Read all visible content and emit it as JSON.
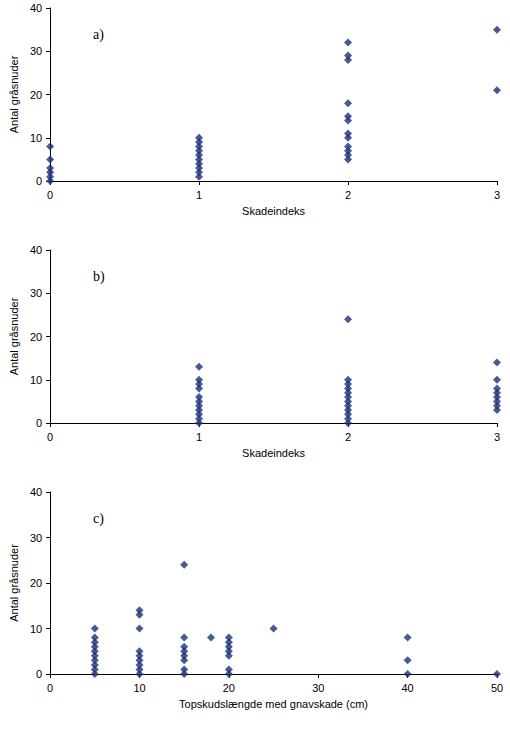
{
  "chart_data": [
    {
      "type": "scatter",
      "title": "a)",
      "x_label": "Skadeindeks",
      "y_label": "Antal gråsnuder",
      "x": [
        0,
        0,
        0,
        0,
        0,
        0,
        1,
        1,
        1,
        1,
        1,
        1,
        1,
        1,
        1,
        1,
        2,
        2,
        2,
        2,
        2,
        2,
        2,
        2,
        2,
        2,
        2,
        2,
        3,
        3
      ],
      "values": [
        8,
        5,
        3,
        2,
        1,
        0,
        10,
        9,
        8,
        7,
        6,
        5,
        4,
        3,
        2,
        1,
        32,
        29,
        28,
        18,
        15,
        14,
        11,
        10,
        8,
        7,
        6,
        5,
        35,
        21
      ],
      "color": "#1a2f78",
      "marker": "diamond",
      "xlim": [
        0,
        3
      ],
      "xticks": [
        0,
        1,
        2,
        3
      ],
      "ylim": [
        0,
        40
      ],
      "yticks": [
        0,
        10,
        20,
        30,
        40
      ],
      "grid": false
    },
    {
      "type": "scatter",
      "title": "b)",
      "x_label": "Skadeindeks",
      "y_label": "Antal gråsnuder",
      "x": [
        1,
        1,
        1,
        1,
        1,
        1,
        1,
        1,
        1,
        1,
        1,
        2,
        2,
        2,
        2,
        2,
        2,
        2,
        2,
        2,
        2,
        2,
        2,
        3,
        3,
        3,
        3,
        3,
        3,
        3,
        3
      ],
      "values": [
        13,
        10,
        9,
        8,
        6,
        5,
        4,
        3,
        2,
        1,
        0,
        24,
        10,
        9,
        8,
        7,
        6,
        5,
        4,
        3,
        2,
        1,
        0,
        14,
        10,
        8,
        7,
        6,
        5,
        4,
        3
      ],
      "color": "#1a2f78",
      "marker": "diamond",
      "xlim": [
        0,
        3
      ],
      "xticks": [
        0,
        1,
        2,
        3
      ],
      "ylim": [
        0,
        40
      ],
      "yticks": [
        0,
        10,
        20,
        30,
        40
      ],
      "grid": false
    },
    {
      "type": "scatter",
      "title": "c)",
      "x_label": "Topskudslængde med gnavskade (cm)",
      "y_label": "Antal gråsnuder",
      "x": [
        5,
        5,
        5,
        5,
        5,
        5,
        5,
        5,
        5,
        5,
        10,
        10,
        10,
        10,
        10,
        10,
        10,
        10,
        10,
        15,
        15,
        15,
        15,
        15,
        15,
        15,
        15,
        18,
        20,
        20,
        20,
        20,
        20,
        20,
        20,
        25,
        40,
        40,
        40,
        50
      ],
      "values": [
        10,
        8,
        7,
        6,
        5,
        4,
        3,
        2,
        1,
        0,
        14,
        13,
        10,
        5,
        4,
        3,
        2,
        1,
        0,
        24,
        8,
        6,
        5,
        4,
        3,
        1,
        0,
        8,
        8,
        7,
        6,
        5,
        4,
        1,
        0,
        10,
        8,
        3,
        0,
        0
      ],
      "color": "#1a2f78",
      "marker": "diamond",
      "xlim": [
        0,
        50
      ],
      "xticks": [
        0,
        10,
        20,
        30,
        40,
        50
      ],
      "ylim": [
        0,
        40
      ],
      "yticks": [
        0,
        10,
        20,
        30,
        40
      ],
      "grid": false
    }
  ]
}
